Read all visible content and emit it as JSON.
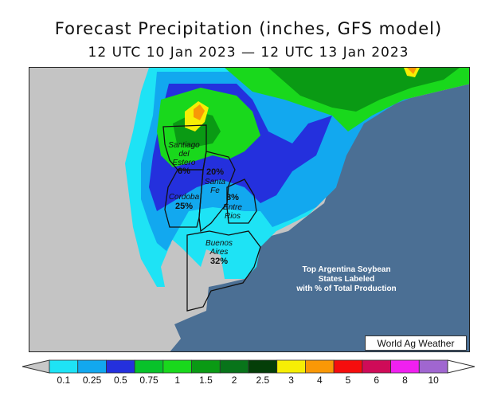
{
  "title": "Forecast Precipitation (inches, GFS model)",
  "subtitle": "12 UTC 10 Jan 2023 — 12 UTC 13 Jan 2023",
  "annotation": [
    "Top Argentina Soybean",
    "States Labeled",
    "with % of Total Production"
  ],
  "credit": "World Ag Weather",
  "states": [
    {
      "name_lines": [
        "Santiago",
        "del",
        "Estero"
      ],
      "pct": "6%"
    },
    {
      "name_lines": [
        "Santa",
        "Fe"
      ],
      "pct": "20%"
    },
    {
      "name_lines": [
        "Cordoba"
      ],
      "pct": "25%"
    },
    {
      "name_lines": [
        "Entre",
        "Rios"
      ],
      "pct": "8%"
    },
    {
      "name_lines": [
        "Buenos",
        "Aires"
      ],
      "pct": "32%"
    }
  ],
  "legend": {
    "ticks": [
      "0.1",
      "0.25",
      "0.5",
      "0.75",
      "1",
      "1.5",
      "2",
      "2.5",
      "3",
      "4",
      "5",
      "6",
      "8",
      "10"
    ],
    "colors": [
      "#1ee3f5",
      "#12a8ef",
      "#2430dd",
      "#08c22a",
      "#19d81c",
      "#0a9a14",
      "#08741a",
      "#043e08",
      "#f6ee05",
      "#f99806",
      "#f50d0d",
      "#cf0b58",
      "#f020f0",
      "#a066d0"
    ],
    "below_color": "#c8c8c8"
  },
  "colors": {
    "ocean": "#4b6f94",
    "land": "#c4c4c4"
  }
}
